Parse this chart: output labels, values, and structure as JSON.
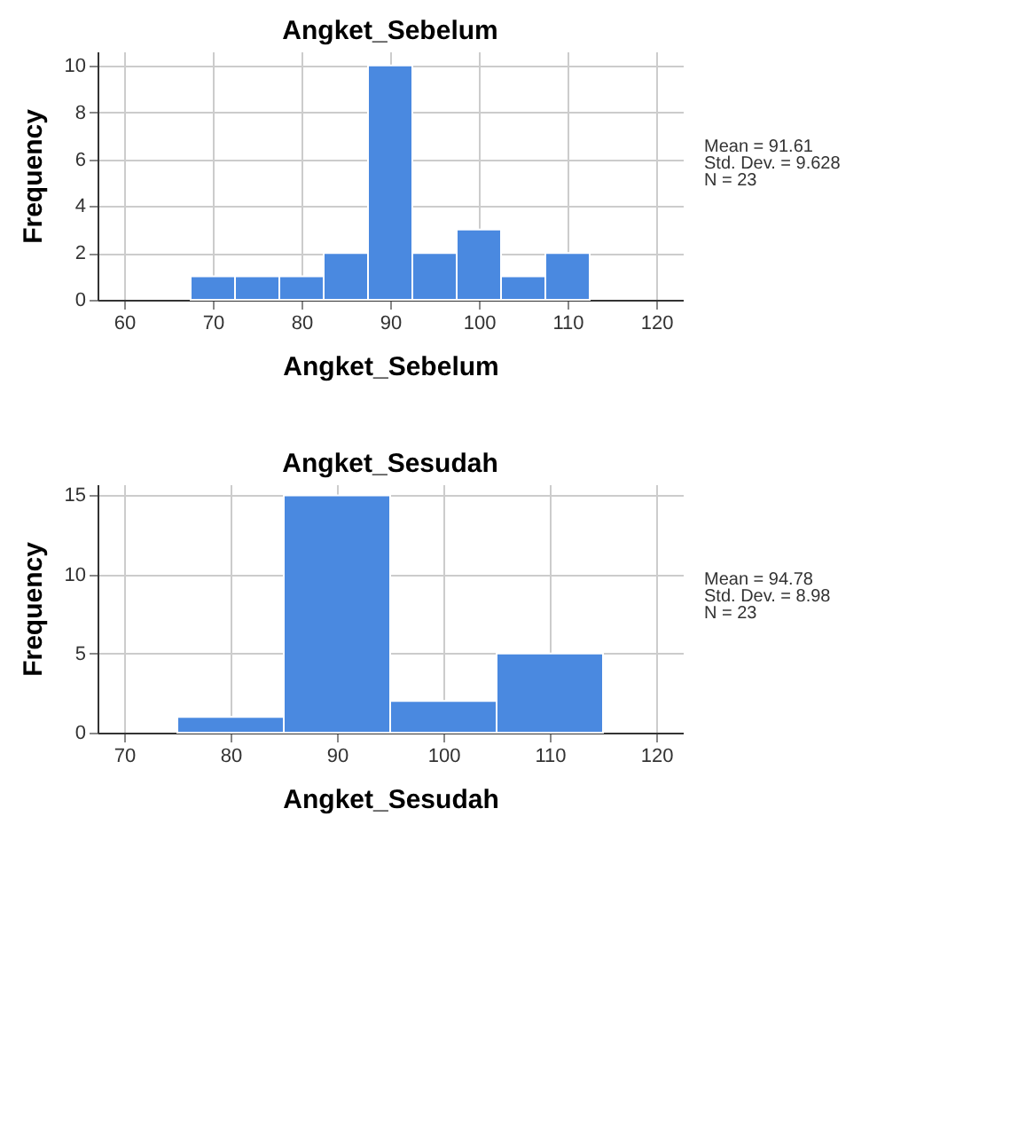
{
  "chart_data": [
    {
      "type": "histogram",
      "title": "Angket_Sebelum",
      "xlabel": "Angket_Sebelum",
      "ylabel": "Frequency",
      "bins": [
        67.5,
        72.5,
        77.5,
        82.5,
        87.5,
        92.5,
        97.5,
        102.5,
        107.5,
        112.5
      ],
      "values": [
        1,
        1,
        1,
        2,
        10,
        2,
        3,
        1,
        2
      ],
      "color": "#4a89e0",
      "xlim": [
        57,
        123
      ],
      "xticks": [
        60,
        70,
        80,
        90,
        100,
        110,
        120
      ],
      "ylim": [
        0,
        10.6
      ],
      "yticks": [
        0,
        2,
        4,
        6,
        8,
        10
      ],
      "grid": true,
      "annotations": [
        "Mean = 91.61",
        "Std. Dev. = 9.628",
        "N = 23"
      ]
    },
    {
      "type": "histogram",
      "title": "Angket_Sesudah",
      "xlabel": "Angket_Sesudah",
      "ylabel": "Frequency",
      "bins": [
        75,
        85,
        95,
        105,
        115
      ],
      "values": [
        1,
        15,
        2,
        5
      ],
      "color": "#4a89e0",
      "xlim": [
        67.5,
        122.5
      ],
      "xticks": [
        70,
        80,
        90,
        100,
        110,
        120
      ],
      "ylim": [
        0,
        15.7
      ],
      "yticks": [
        0,
        5,
        10,
        15
      ],
      "grid": true,
      "annotations": [
        "Mean = 94.78",
        "Std. Dev. = 8.98",
        "N = 23"
      ]
    }
  ]
}
